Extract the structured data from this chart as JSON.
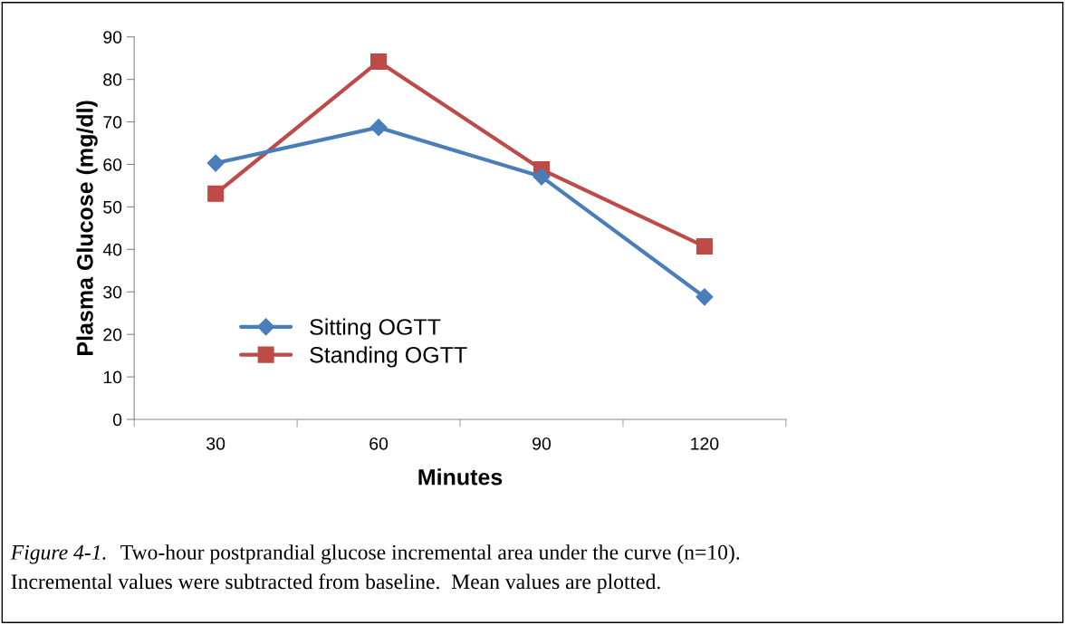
{
  "chart_data": {
    "type": "line",
    "xlabel": "Minutes",
    "ylabel": "Plasma Glucose (mg/dl)",
    "categories": [
      "30",
      "60",
      "90",
      "120"
    ],
    "series": [
      {
        "name": "Sitting OGTT",
        "color": "#4a7ebb",
        "marker": "diamond",
        "values": [
          60.3,
          68.7,
          57.1,
          28.8
        ]
      },
      {
        "name": "Standing OGTT",
        "color": "#be4b48",
        "marker": "square",
        "values": [
          53.1,
          84.2,
          58.8,
          40.7
        ]
      }
    ],
    "ylim": [
      0,
      90
    ],
    "yticks": [
      0,
      10,
      20,
      30,
      40,
      50,
      60,
      70,
      80,
      90
    ],
    "grid": false,
    "legend": "center left",
    "line_style": "solid",
    "annotations": [
      "Figure 4-1.",
      "Two-hour postprandial glucose incremental area under the curve (n=10).",
      "Incremental values were subtracted from baseline.  Mean values are plotted."
    ]
  }
}
